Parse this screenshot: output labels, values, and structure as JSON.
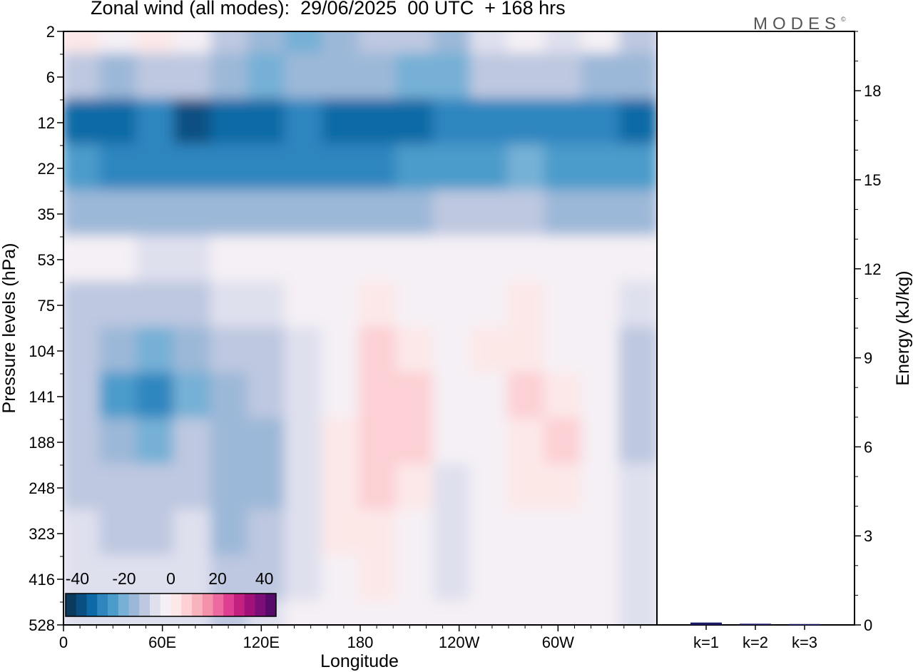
{
  "title": "Zonal wind (all modes):  29/06/2025  00 UTC  + 168 hrs",
  "logo": "MODES",
  "logo_mark": "©",
  "chart_data": [
    {
      "type": "heatmap",
      "name": "zonal-wind-cross-section",
      "xlabel": "Longitude",
      "ylabel": "Pressure levels (hPa)",
      "x_ticks": [
        "0",
        "60E",
        "120E",
        "180",
        "120W",
        "60W"
      ],
      "x_tick_values": [
        0,
        60,
        120,
        180,
        240,
        300
      ],
      "xlim": [
        0,
        360
      ],
      "y_ticks": [
        2,
        6,
        12,
        22,
        35,
        53,
        75,
        104,
        141,
        188,
        248,
        323,
        416,
        528
      ],
      "y_scale": "levels",
      "colorbar": {
        "ticks": [
          "-40",
          "-20",
          "0",
          "20",
          "40"
        ],
        "range": [
          -45,
          45
        ],
        "step": 5,
        "colors": [
          "#0a3a5c",
          "#0a4f82",
          "#0d6aa6",
          "#2f86bf",
          "#4b9bcb",
          "#76b0d6",
          "#9cb8d8",
          "#bec8e0",
          "#dfe0ee",
          "#f5f0f5",
          "#fde8e8",
          "#fcd0d4",
          "#f8b3bd",
          "#f391aa",
          "#ec6aa0",
          "#de3f93",
          "#c4207f",
          "#a0117a",
          "#7d0d77",
          "#580a6b"
        ]
      },
      "value_bands": [
        {
          "level": 2,
          "u": [
            8,
            4,
            6,
            2,
            -8,
            -14,
            -18,
            -15,
            -10,
            -8,
            -12,
            -5,
            0,
            -2,
            4,
            -6
          ]
        },
        {
          "level": 6,
          "u": [
            -10,
            -12,
            -8,
            -10,
            -14,
            -20,
            -15,
            -12,
            -14,
            -16,
            -18,
            -10,
            -6,
            -10,
            -12,
            -14
          ]
        },
        {
          "level": 12,
          "u": [
            -34,
            -32,
            -30,
            -36,
            -34,
            -32,
            -30,
            -32,
            -33,
            -34,
            -30,
            -28,
            -26,
            -28,
            -30,
            -34
          ]
        },
        {
          "level": 22,
          "u": [
            -25,
            -26,
            -28,
            -30,
            -30,
            -28,
            -28,
            -27,
            -26,
            -24,
            -22,
            -22,
            -20,
            -22,
            -22,
            -24
          ]
        },
        {
          "level": 35,
          "u": [
            -12,
            -12,
            -14,
            -14,
            -15,
            -14,
            -13,
            -12,
            -12,
            -12,
            -10,
            -10,
            -10,
            -12,
            -12,
            -12
          ]
        },
        {
          "level": 53,
          "u": [
            2,
            0,
            -2,
            -2,
            0,
            1,
            1,
            2,
            2,
            2,
            2,
            2,
            1,
            2,
            2,
            0
          ]
        },
        {
          "level": 75,
          "u": [
            -6,
            -8,
            -10,
            -8,
            -5,
            -2,
            0,
            2,
            5,
            3,
            2,
            4,
            5,
            2,
            0,
            -3
          ]
        },
        {
          "level": 104,
          "u": [
            -8,
            -12,
            -16,
            -14,
            -10,
            -6,
            -2,
            3,
            10,
            8,
            4,
            8,
            8,
            4,
            0,
            -6
          ]
        },
        {
          "level": 141,
          "u": [
            -10,
            -22,
            -28,
            -18,
            -14,
            -10,
            -4,
            4,
            14,
            10,
            2,
            4,
            10,
            8,
            0,
            -8
          ]
        },
        {
          "level": 188,
          "u": [
            -8,
            -14,
            -20,
            -10,
            -14,
            -12,
            -4,
            6,
            14,
            10,
            0,
            2,
            8,
            10,
            0,
            -6
          ]
        },
        {
          "level": 248,
          "u": [
            -6,
            -8,
            -10,
            -6,
            -14,
            -12,
            -4,
            8,
            12,
            6,
            -2,
            0,
            6,
            6,
            0,
            -4
          ]
        },
        {
          "level": 323,
          "u": [
            -4,
            -6,
            -6,
            -4,
            -12,
            -10,
            -2,
            6,
            8,
            4,
            -4,
            0,
            2,
            2,
            0,
            -4
          ]
        },
        {
          "level": 416,
          "u": [
            -4,
            -4,
            -4,
            -2,
            -10,
            -8,
            -2,
            4,
            6,
            2,
            -2,
            2,
            0,
            2,
            0,
            -4
          ]
        },
        {
          "level": 528,
          "u": [
            -4,
            -4,
            -4,
            -2,
            -6,
            -4,
            0,
            2,
            4,
            2,
            0,
            2,
            0,
            0,
            0,
            -2
          ]
        }
      ]
    },
    {
      "type": "bar",
      "name": "energy-by-wavenumber",
      "categories": [
        "k=1",
        "k=2",
        "k=3"
      ],
      "values": [
        0.08,
        0.04,
        0.03
      ],
      "ylabel": "Energy (kJ/kg)",
      "y_ticks": [
        0,
        3,
        6,
        9,
        12,
        15,
        18
      ],
      "ylim": [
        0,
        20
      ],
      "bar_color": "#1a1a66"
    }
  ]
}
